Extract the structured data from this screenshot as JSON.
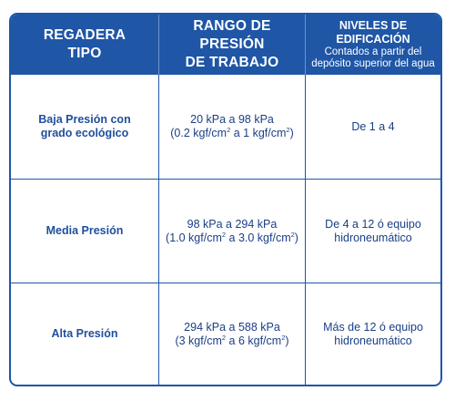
{
  "header": {
    "col1": [
      "REGADERA",
      "TIPO"
    ],
    "col2": [
      "RANGO DE PRESIÓN",
      "DE TRABAJO"
    ],
    "col3_title": "NIVELES DE EDIFICACIÓN",
    "col3_sub": [
      "Contados a partir del",
      "depósito superior del agua"
    ]
  },
  "rows": [
    {
      "type": [
        "Baja Presión con",
        "grado ecológico"
      ],
      "range_kpa": "20 kPa a 98 kPa",
      "range_kgf": {
        "open": "(0.2 kgf/cm",
        "mid": " a 1 kgf/cm",
        "close": ")",
        "sup": "2"
      },
      "levels": [
        "De 1 a 4"
      ]
    },
    {
      "type": [
        "Media Presión"
      ],
      "range_kpa": "98 kPa a 294 kPa",
      "range_kgf": {
        "open": "(1.0 kgf/cm",
        "mid": " a 3.0 kgf/cm",
        "close": ")",
        "sup": "2"
      },
      "levels": [
        "De 4 a 12 ó equipo",
        "hidroneumático"
      ]
    },
    {
      "type": [
        "Alta Presión"
      ],
      "range_kpa": "294 kPa a 588 kPa",
      "range_kgf": {
        "open": "(3 kgf/cm",
        "mid": " a 6 kgf/cm",
        "close": ")",
        "sup": "2"
      },
      "levels": [
        "Más de 12 ó equipo",
        "hidroneumático"
      ]
    }
  ]
}
